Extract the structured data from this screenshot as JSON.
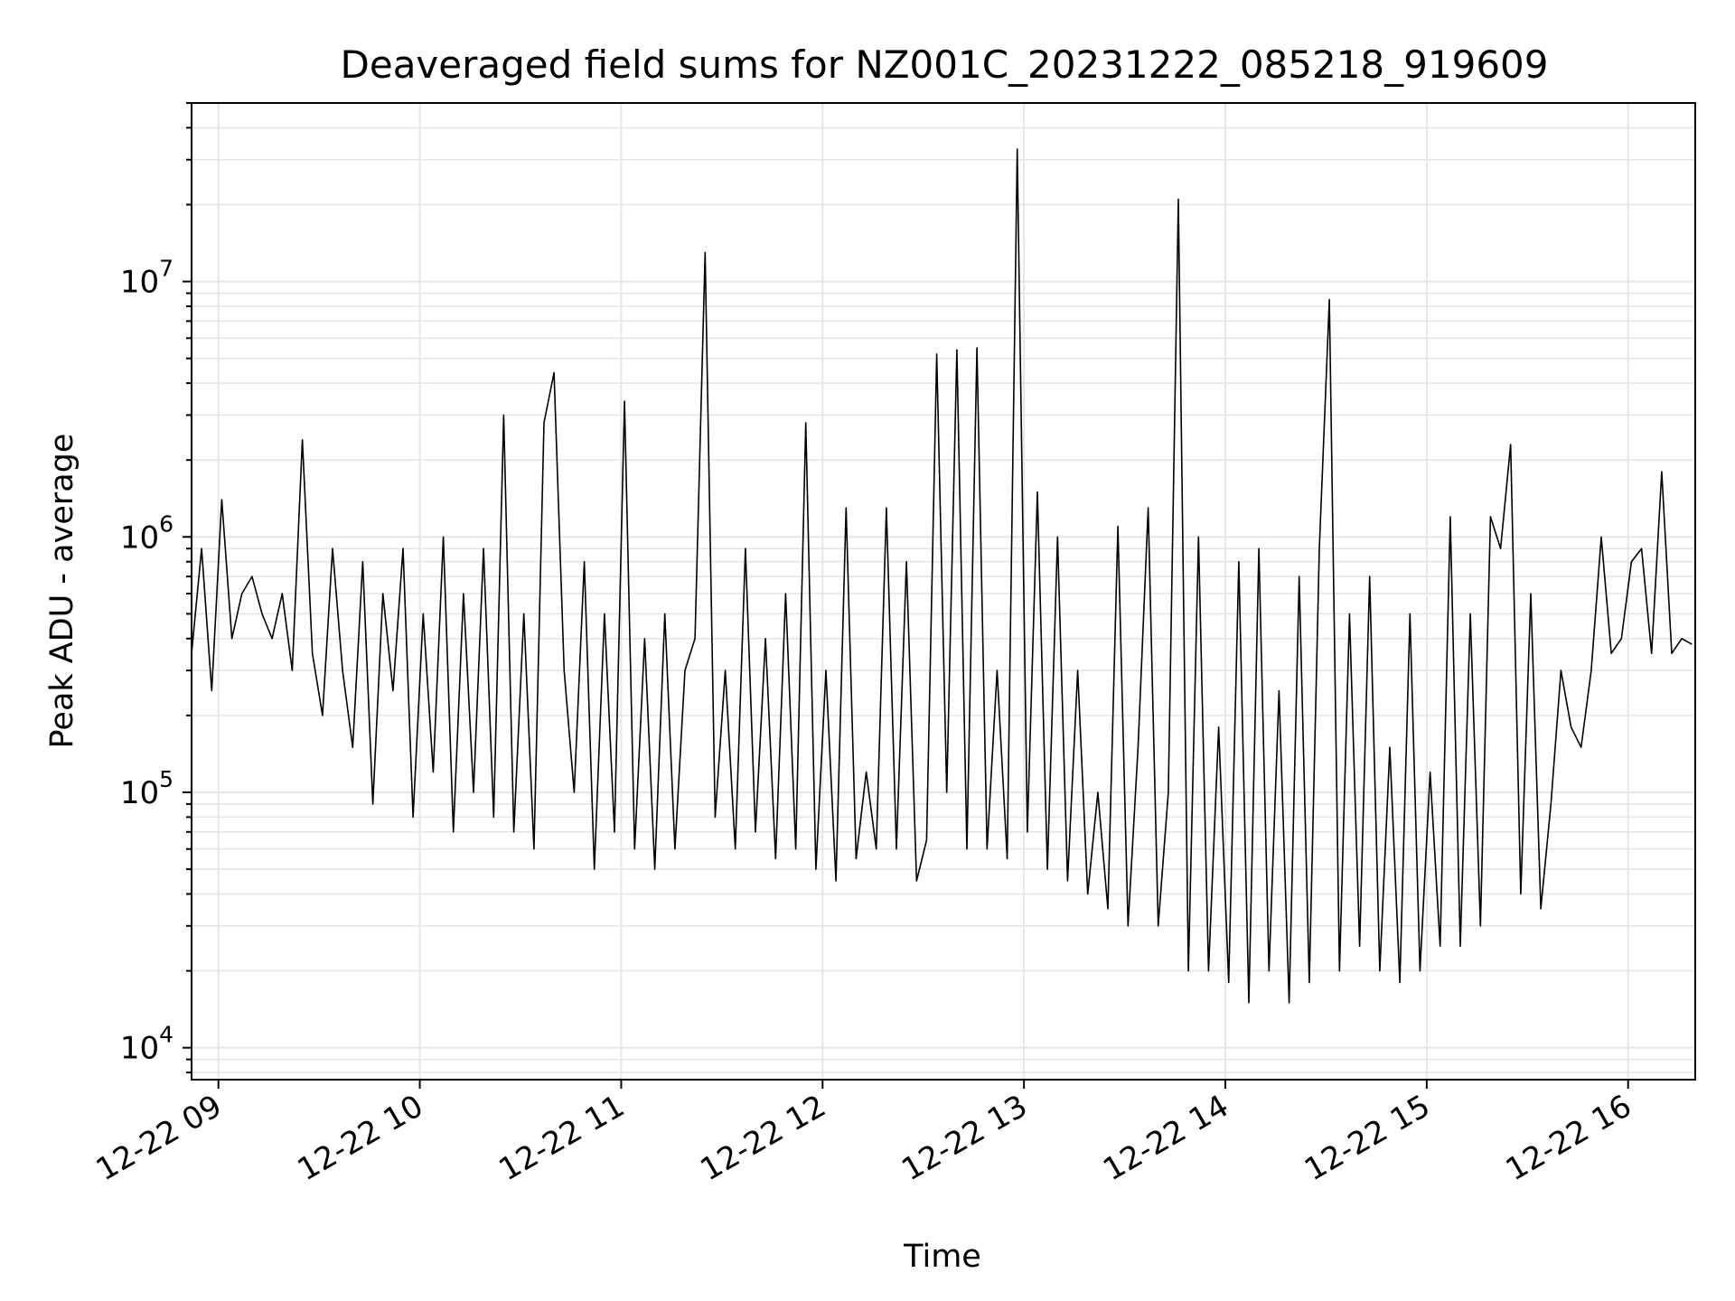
{
  "chart_data": {
    "type": "line",
    "title": "Deaveraged field sums for NZ001C_20231222_085218_919609",
    "xlabel": "Time",
    "ylabel": "Peak ADU - average",
    "xscale": "time",
    "yscale": "log",
    "xlim": [
      "2023-12-22 08:52",
      "2023-12-22 16:20"
    ],
    "ylim": [
      7500,
      50000000
    ],
    "grid": true,
    "line_color": "#000000",
    "grid_color": "#e6e6e6",
    "x_ticks": [
      {
        "value": "2023-12-22 09:00",
        "label": "12-22 09"
      },
      {
        "value": "2023-12-22 10:00",
        "label": "12-22 10"
      },
      {
        "value": "2023-12-22 11:00",
        "label": "12-22 11"
      },
      {
        "value": "2023-12-22 12:00",
        "label": "12-22 12"
      },
      {
        "value": "2023-12-22 13:00",
        "label": "12-22 13"
      },
      {
        "value": "2023-12-22 14:00",
        "label": "12-22 14"
      },
      {
        "value": "2023-12-22 15:00",
        "label": "12-22 15"
      },
      {
        "value": "2023-12-22 16:00",
        "label": "12-22 16"
      }
    ],
    "y_ticks": [
      {
        "value": 10000,
        "base": "10",
        "exp": "4"
      },
      {
        "value": 100000,
        "base": "10",
        "exp": "5"
      },
      {
        "value": 1000000,
        "base": "10",
        "exp": "6"
      },
      {
        "value": 10000000,
        "base": "10",
        "exp": "7"
      }
    ],
    "series": [
      {
        "x": [
          "2023-12-22 08:52",
          "2023-12-22 08:55",
          "2023-12-22 08:58",
          "2023-12-22 09:01",
          "2023-12-22 09:04",
          "2023-12-22 09:07",
          "2023-12-22 09:10",
          "2023-12-22 09:13",
          "2023-12-22 09:16",
          "2023-12-22 09:19",
          "2023-12-22 09:22",
          "2023-12-22 09:25",
          "2023-12-22 09:28",
          "2023-12-22 09:31",
          "2023-12-22 09:34",
          "2023-12-22 09:37",
          "2023-12-22 09:40",
          "2023-12-22 09:43",
          "2023-12-22 09:46",
          "2023-12-22 09:49",
          "2023-12-22 09:52",
          "2023-12-22 09:55",
          "2023-12-22 09:58",
          "2023-12-22 10:01",
          "2023-12-22 10:04",
          "2023-12-22 10:07",
          "2023-12-22 10:10",
          "2023-12-22 10:13",
          "2023-12-22 10:16",
          "2023-12-22 10:19",
          "2023-12-22 10:22",
          "2023-12-22 10:25",
          "2023-12-22 10:28",
          "2023-12-22 10:31",
          "2023-12-22 10:34",
          "2023-12-22 10:37",
          "2023-12-22 10:40",
          "2023-12-22 10:43",
          "2023-12-22 10:46",
          "2023-12-22 10:49",
          "2023-12-22 10:52",
          "2023-12-22 10:55",
          "2023-12-22 10:58",
          "2023-12-22 11:01",
          "2023-12-22 11:04",
          "2023-12-22 11:07",
          "2023-12-22 11:10",
          "2023-12-22 11:13",
          "2023-12-22 11:16",
          "2023-12-22 11:19",
          "2023-12-22 11:22",
          "2023-12-22 11:25",
          "2023-12-22 11:28",
          "2023-12-22 11:31",
          "2023-12-22 11:34",
          "2023-12-22 11:37",
          "2023-12-22 11:40",
          "2023-12-22 11:43",
          "2023-12-22 11:46",
          "2023-12-22 11:49",
          "2023-12-22 11:52",
          "2023-12-22 11:55",
          "2023-12-22 11:58",
          "2023-12-22 12:01",
          "2023-12-22 12:04",
          "2023-12-22 12:07",
          "2023-12-22 12:10",
          "2023-12-22 12:13",
          "2023-12-22 12:16",
          "2023-12-22 12:19",
          "2023-12-22 12:22",
          "2023-12-22 12:25",
          "2023-12-22 12:28",
          "2023-12-22 12:31",
          "2023-12-22 12:34",
          "2023-12-22 12:37",
          "2023-12-22 12:40",
          "2023-12-22 12:43",
          "2023-12-22 12:46",
          "2023-12-22 12:49",
          "2023-12-22 12:52",
          "2023-12-22 12:55",
          "2023-12-22 12:58",
          "2023-12-22 13:01",
          "2023-12-22 13:04",
          "2023-12-22 13:07",
          "2023-12-22 13:10",
          "2023-12-22 13:13",
          "2023-12-22 13:16",
          "2023-12-22 13:19",
          "2023-12-22 13:22",
          "2023-12-22 13:25",
          "2023-12-22 13:28",
          "2023-12-22 13:31",
          "2023-12-22 13:34",
          "2023-12-22 13:37",
          "2023-12-22 13:40",
          "2023-12-22 13:43",
          "2023-12-22 13:46",
          "2023-12-22 13:49",
          "2023-12-22 13:52",
          "2023-12-22 13:55",
          "2023-12-22 13:58",
          "2023-12-22 14:01",
          "2023-12-22 14:04",
          "2023-12-22 14:07",
          "2023-12-22 14:10",
          "2023-12-22 14:13",
          "2023-12-22 14:16",
          "2023-12-22 14:19",
          "2023-12-22 14:22",
          "2023-12-22 14:25",
          "2023-12-22 14:28",
          "2023-12-22 14:31",
          "2023-12-22 14:34",
          "2023-12-22 14:37",
          "2023-12-22 14:40",
          "2023-12-22 14:43",
          "2023-12-22 14:46",
          "2023-12-22 14:49",
          "2023-12-22 14:52",
          "2023-12-22 14:55",
          "2023-12-22 14:58",
          "2023-12-22 15:01",
          "2023-12-22 15:04",
          "2023-12-22 15:07",
          "2023-12-22 15:10",
          "2023-12-22 15:13",
          "2023-12-22 15:16",
          "2023-12-22 15:19",
          "2023-12-22 15:22",
          "2023-12-22 15:25",
          "2023-12-22 15:28",
          "2023-12-22 15:31",
          "2023-12-22 15:34",
          "2023-12-22 15:37",
          "2023-12-22 15:40",
          "2023-12-22 15:43",
          "2023-12-22 15:46",
          "2023-12-22 15:49",
          "2023-12-22 15:52",
          "2023-12-22 15:55",
          "2023-12-22 15:58",
          "2023-12-22 16:01",
          "2023-12-22 16:04",
          "2023-12-22 16:07",
          "2023-12-22 16:10",
          "2023-12-22 16:13",
          "2023-12-22 16:16",
          "2023-12-22 16:19"
        ],
        "y": [
          350000,
          900000,
          250000,
          1400000,
          400000,
          600000,
          700000,
          500000,
          400000,
          600000,
          300000,
          2400000,
          350000,
          200000,
          900000,
          300000,
          150000,
          800000,
          90000,
          600000,
          250000,
          900000,
          80000,
          500000,
          120000,
          1000000,
          70000,
          600000,
          100000,
          900000,
          80000,
          3000000,
          70000,
          500000,
          60000,
          2800000,
          4400000,
          300000,
          100000,
          800000,
          50000,
          500000,
          70000,
          3400000,
          60000,
          400000,
          50000,
          500000,
          60000,
          300000,
          400000,
          13000000,
          80000,
          300000,
          60000,
          900000,
          70000,
          400000,
          55000,
          600000,
          60000,
          2800000,
          50000,
          300000,
          45000,
          1300000,
          55000,
          120000,
          60000,
          1300000,
          60000,
          800000,
          45000,
          65000,
          5200000,
          100000,
          5400000,
          60000,
          5500000,
          60000,
          300000,
          55000,
          33000000,
          70000,
          1500000,
          50000,
          1000000,
          45000,
          300000,
          40000,
          100000,
          35000,
          1100000,
          30000,
          150000,
          1300000,
          30000,
          100000,
          21000000,
          20000,
          1000000,
          20000,
          180000,
          18000,
          800000,
          15000,
          900000,
          20000,
          250000,
          15000,
          700000,
          18000,
          900000,
          8500000,
          20000,
          500000,
          25000,
          700000,
          20000,
          150000,
          18000,
          500000,
          20000,
          120000,
          25000,
          1200000,
          25000,
          500000,
          30000,
          1200000,
          900000,
          2300000,
          40000,
          600000,
          35000,
          90000,
          300000,
          180000,
          150000,
          300000,
          1000000,
          350000,
          400000,
          800000,
          900000,
          350000,
          1800000,
          350000,
          400000,
          380000
        ]
      }
    ]
  }
}
